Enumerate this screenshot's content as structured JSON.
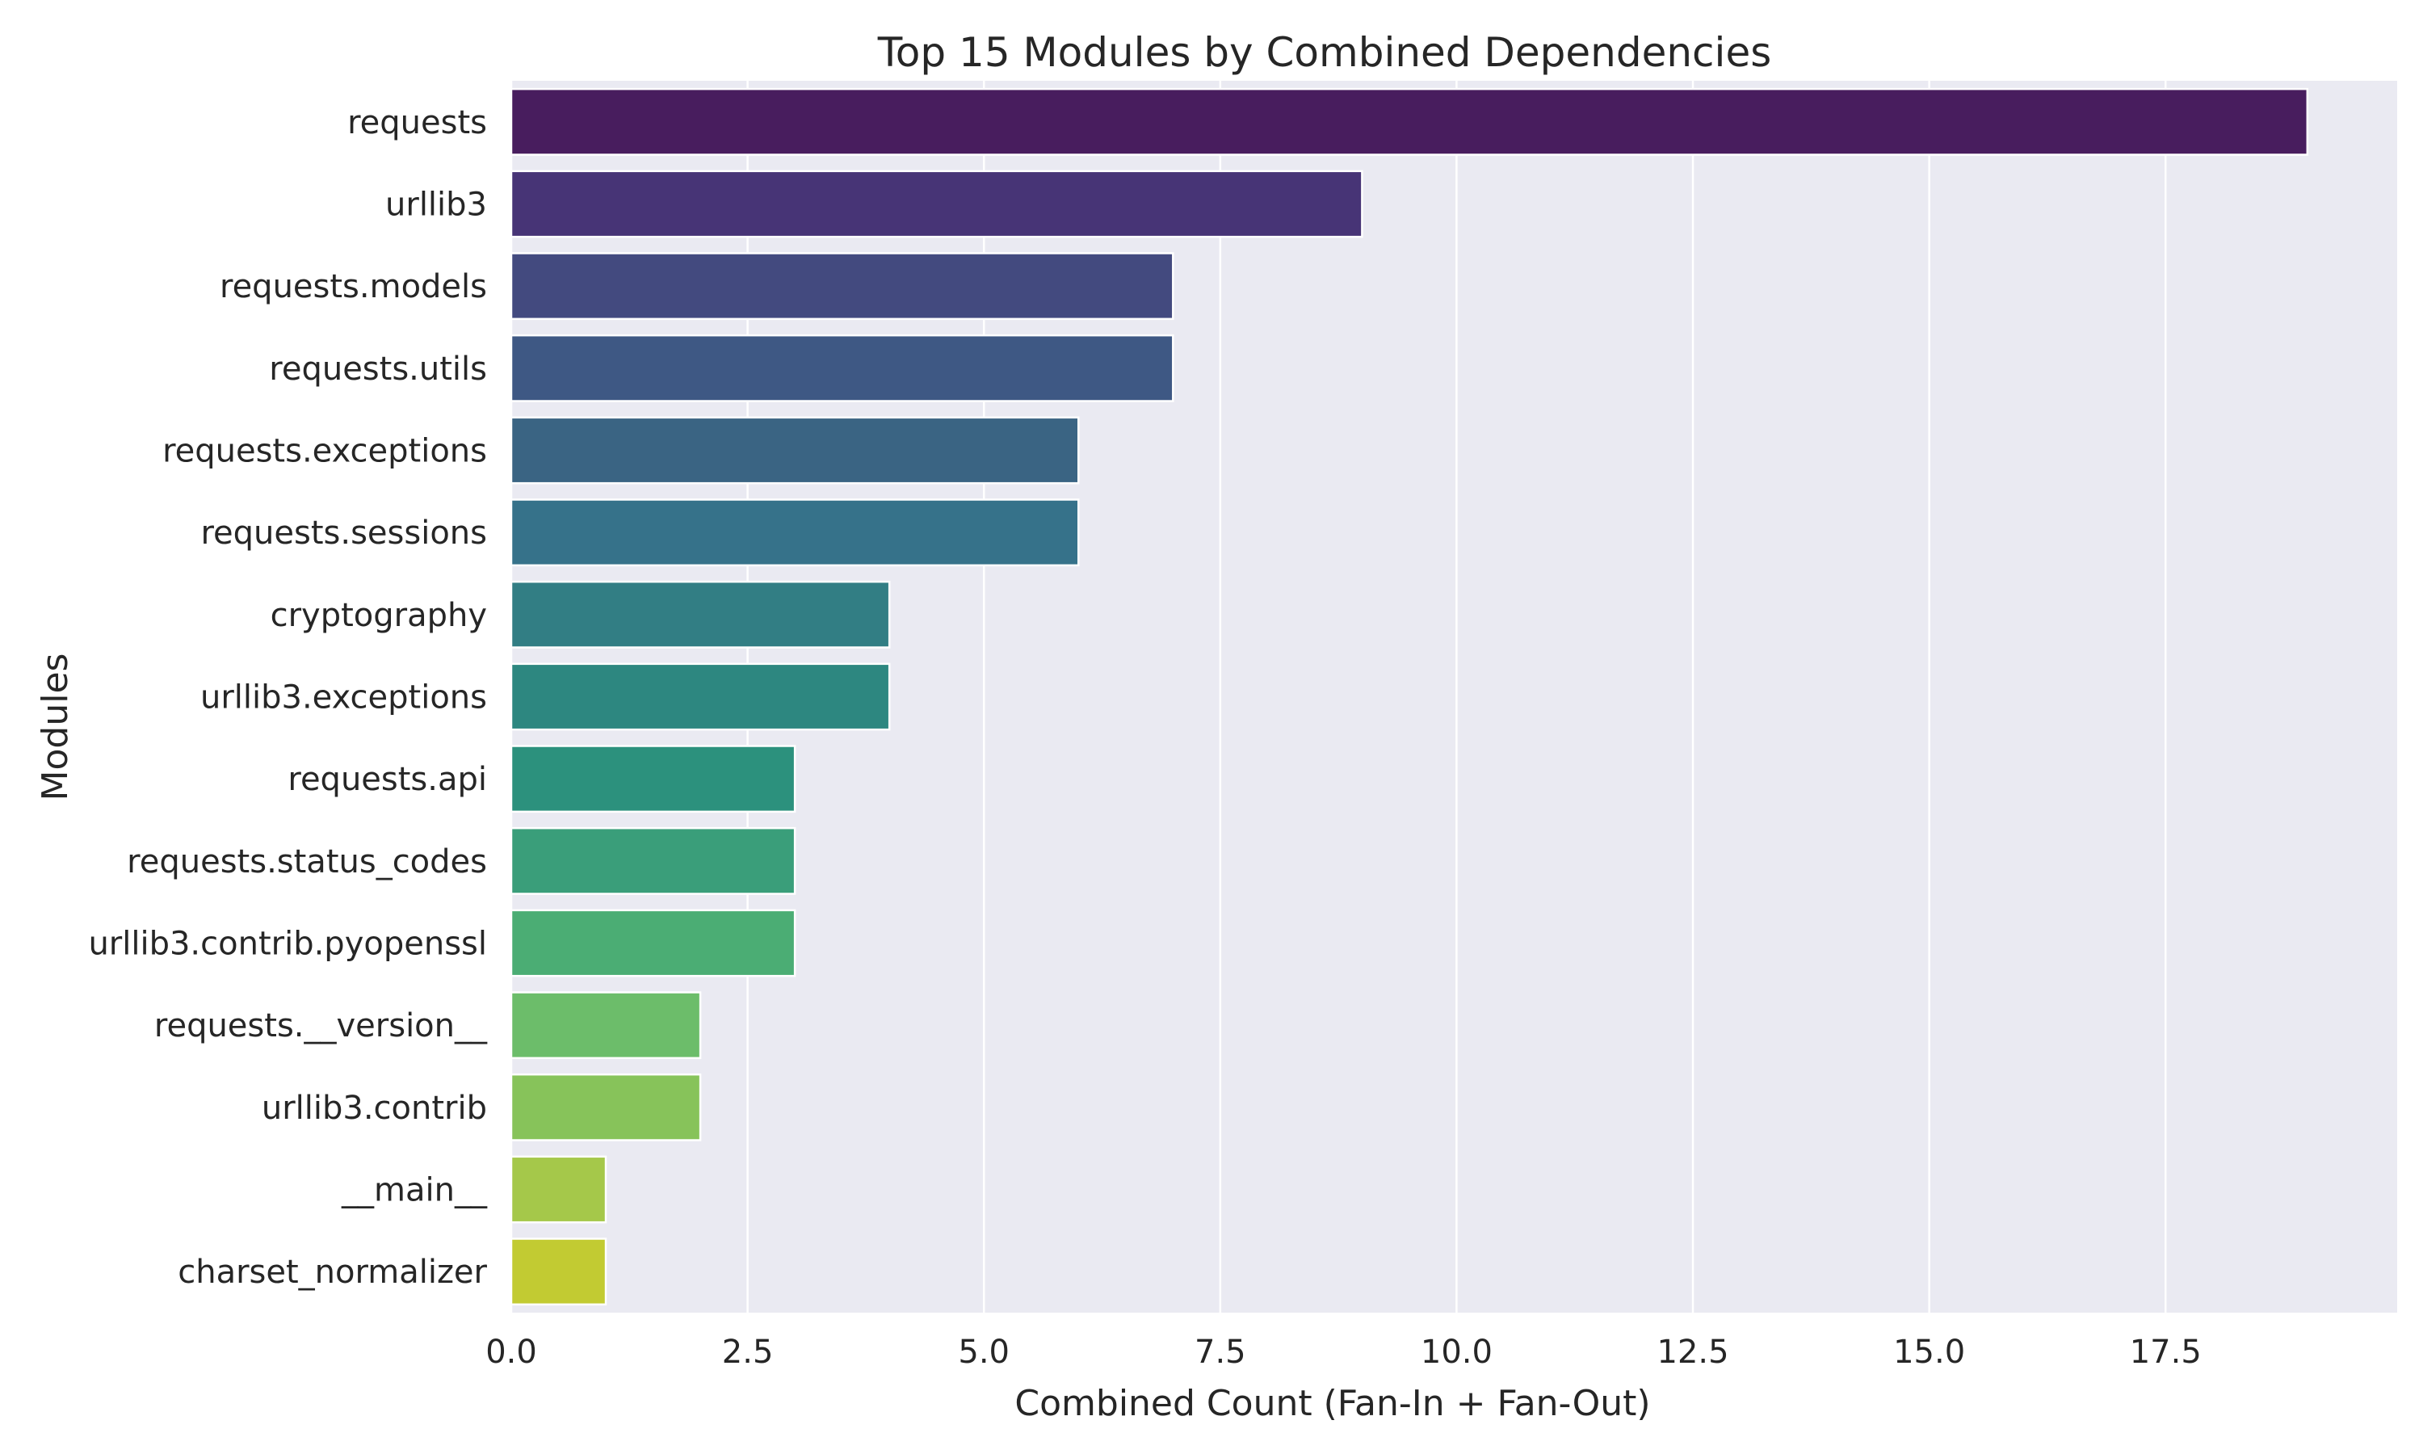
{
  "chart_data": {
    "type": "bar",
    "orientation": "horizontal",
    "title": "Top 15 Modules by Combined Dependencies",
    "xlabel": "Combined Count (Fan-In + Fan-Out)",
    "ylabel": "Modules",
    "xlim": [
      0,
      19.95
    ],
    "xticks": [
      "0.0",
      "2.5",
      "5.0",
      "7.5",
      "10.0",
      "12.5",
      "15.0",
      "17.5"
    ],
    "grid": true,
    "categories": [
      "requests",
      "urllib3",
      "requests.models",
      "requests.utils",
      "requests.exceptions",
      "requests.sessions",
      "cryptography",
      "urllib3.exceptions",
      "requests.api",
      "requests.status_codes",
      "urllib3.contrib.pyopenssl",
      "requests.__version__",
      "urllib3.contrib",
      "__main__",
      "charset_normalizer"
    ],
    "values": [
      19,
      9,
      7,
      7,
      6,
      6,
      4,
      4,
      3,
      3,
      3,
      2,
      2,
      1,
      1
    ],
    "colors": [
      "#481d5e",
      "#473476",
      "#434a7f",
      "#3e5884",
      "#3a6483",
      "#36728a",
      "#327e84",
      "#2d8780",
      "#2c917d",
      "#3a9e7a",
      "#4bad74",
      "#6cbd6a",
      "#87c35a",
      "#a5c84a",
      "#c2cb32"
    ]
  }
}
